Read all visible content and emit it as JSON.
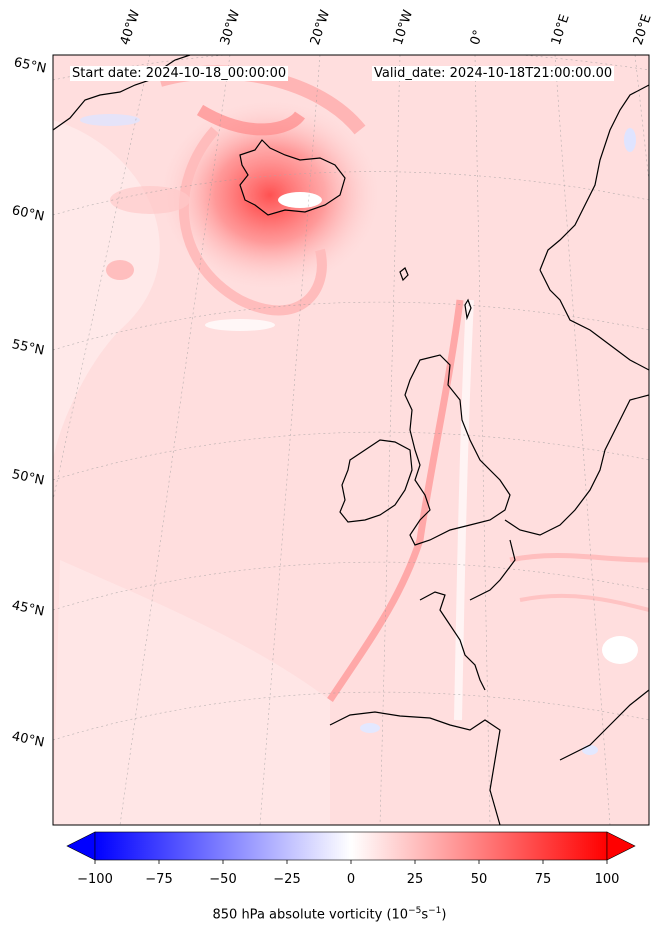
{
  "header": {
    "start_date": "Start date: 2024-10-18_00:00:00",
    "valid_date": "Valid_date: 2024-10-18T21:00:00.00"
  },
  "longitude_labels": [
    "40°W",
    "30°W",
    "20°W",
    "10°W",
    "0°",
    "10°E",
    "20°E"
  ],
  "latitude_labels": [
    "65°N",
    "60°N",
    "55°N",
    "50°N",
    "45°N",
    "40°N"
  ],
  "colorbar": {
    "ticks": [
      "−100",
      "−75",
      "−50",
      "−25",
      "0",
      "25",
      "50",
      "75",
      "100"
    ],
    "label_main": "850 hPa absolute vorticity (10",
    "label_exp1": "−5",
    "label_mid": "s",
    "label_exp2": "−1",
    "label_end": ")",
    "min": -100,
    "max": 100,
    "low_color": "#0000ff",
    "mid_color": "#ffffff",
    "high_color": "#ff0000"
  }
}
